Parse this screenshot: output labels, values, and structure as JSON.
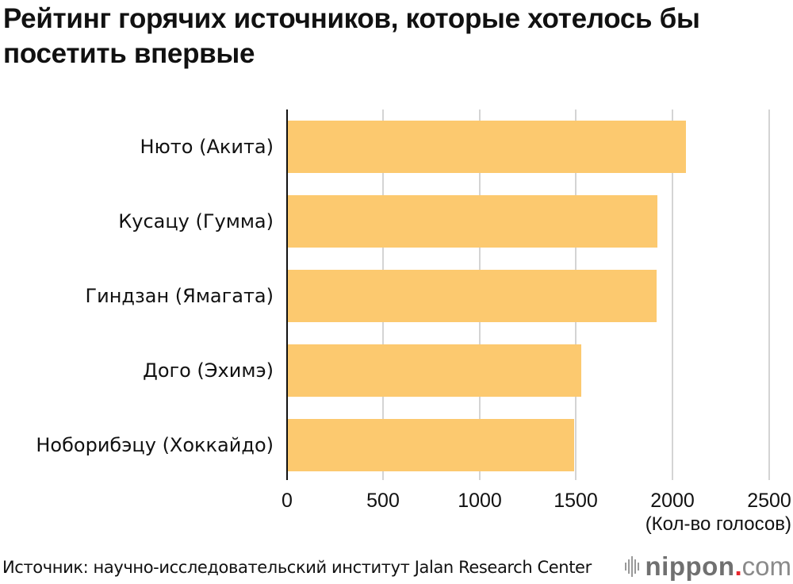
{
  "title": "Рейтинг горячих источников, которые хотелось бы посетить впервые",
  "source": "Источник: научно-исследовательский институт Jalan Research Center",
  "logo": {
    "name": "nippon",
    "dot": ".",
    "tld": "com",
    "accent": "#e8262c"
  },
  "bar_color": "#fcc96f",
  "chart_data": {
    "type": "bar",
    "orientation": "horizontal",
    "title": "Рейтинг горячих источников, которые хотелось бы посетить впервые",
    "categories": [
      "Нюто (Акита)",
      "Кусацу (Гумма)",
      "Гиндзан (Ямагата)",
      "Дого (Эхимэ)",
      "Ноборибэцу (Хоккайдо)"
    ],
    "values": [
      2065,
      1915,
      1910,
      1520,
      1485
    ],
    "xlabel": "(Кол-во голосов)",
    "ylabel": "",
    "xlim": [
      0,
      2500
    ],
    "xticks": [
      "0",
      "500",
      "1000",
      "1500",
      "2000",
      "2500"
    ],
    "grid": true,
    "legend": null
  }
}
